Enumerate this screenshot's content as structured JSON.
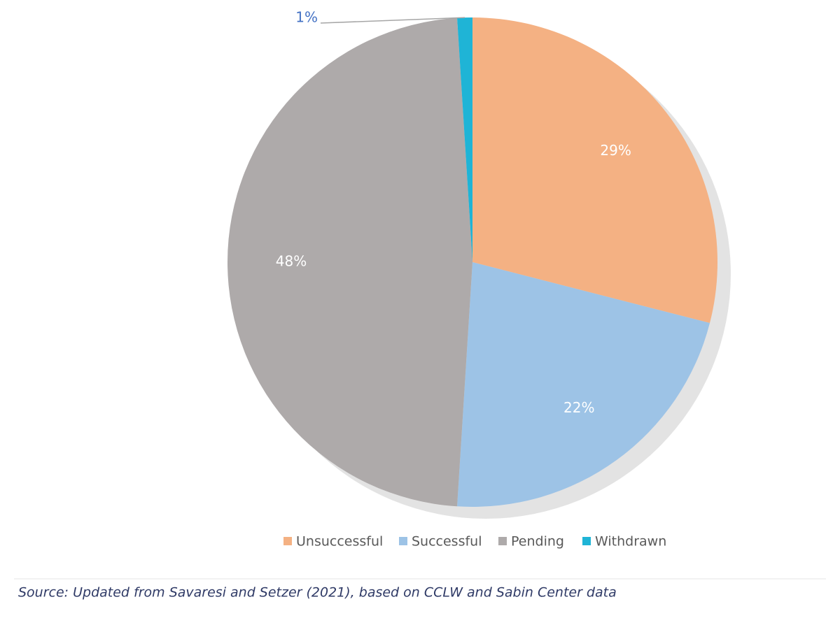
{
  "chart_data": {
    "type": "pie",
    "categories": [
      "Unsuccessful",
      "Successful",
      "Pending",
      "Withdrawn"
    ],
    "values": [
      29,
      22,
      48,
      1
    ],
    "value_labels": [
      "29%",
      "22%",
      "48%",
      "1%"
    ],
    "colors": [
      "#f4b183",
      "#9dc3e6",
      "#aeaaaa",
      "#1fb4d6"
    ],
    "legend": "bottom"
  },
  "caption": "Source: Updated from Savaresi and Setzer (2021), based on CCLW and Sabin Center data"
}
